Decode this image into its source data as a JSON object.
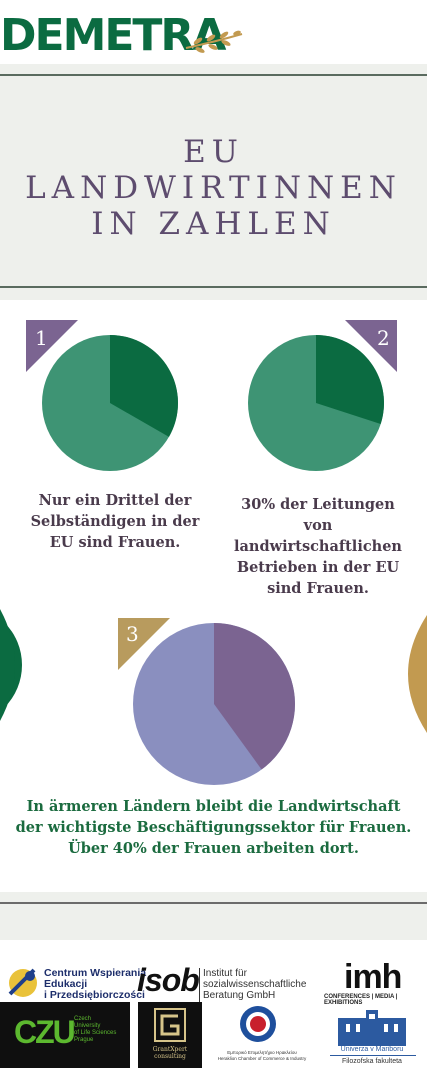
{
  "header": {
    "logo_text": "DEMETRA"
  },
  "title": {
    "lines": [
      "EU",
      "LANDWIRTINNEN",
      "IN ZAHLEN"
    ]
  },
  "stats": [
    {
      "number": "1",
      "text_lines": [
        "Nur ein Drittel der",
        "Selbständigen in der",
        "EU sind Frauen."
      ],
      "share": 0.333
    },
    {
      "number": "2",
      "text_lines": [
        "30% der Leitungen",
        "von",
        "landwirtschaftlichen",
        "Betrieben in der EU",
        "sind Frauen."
      ],
      "share": 0.3
    },
    {
      "number": "3",
      "text_lines": [
        "In ärmeren Ländern bleibt die Landwirtschaft",
        "der wichtigste Beschäftigungssektor für Frauen.",
        "Über 40% der Frauen arbeiten dort."
      ],
      "share": 0.4
    }
  ],
  "colors": {
    "green_dark": "#0b6b41",
    "green_light": "#3e9474",
    "purple_dark": "#7b6491",
    "purple_light": "#8a8fbf",
    "badge_purple": "#7b6491",
    "badge_gold": "#b89b5e",
    "gold": "#c29a50"
  },
  "partners": {
    "cwep": [
      "Centrum Wspierania",
      "Edukacji",
      "i Przedsiębiorczości"
    ],
    "isob_logo": "isob",
    "isob_text": [
      "Institut für",
      "sozialwissenschaftliche",
      "Beratung GmbH"
    ],
    "imh_logo": "imh",
    "imh_text": "CONFERENCES | MEDIA | EXHIBITIONS",
    "czu_logo": "CZU",
    "czu_text": [
      "Czech",
      "University",
      "of Life Sciences",
      "Prague"
    ],
    "grantxpert": [
      "GrantXpert",
      "consulting"
    ],
    "hcci_text": [
      "Εμπορικό Επιμελητήριο Ηρακλείου",
      "Heraklion Chamber of Commerce & Industry"
    ],
    "maribor": [
      "Univerza v Mariboru",
      "Filozofska fakulteta"
    ]
  }
}
